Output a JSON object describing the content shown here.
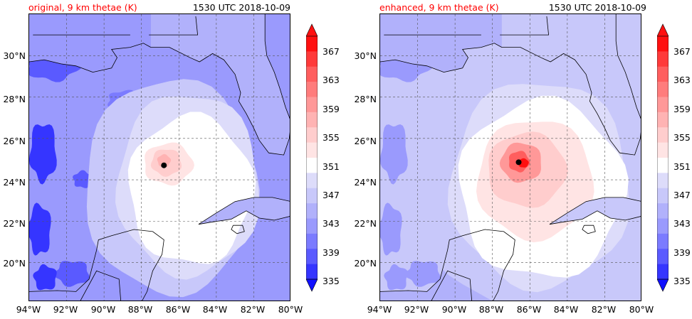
{
  "colors": {
    "levels": [
      "#1010ff",
      "#3535ff",
      "#5a5aff",
      "#7b7bff",
      "#9a9afd",
      "#b1b1fb",
      "#c8c8fa",
      "#dddcfa",
      "#ffffff",
      "#ffe4e4",
      "#ffcdcd",
      "#ffb3b3",
      "#ff9898",
      "#ff7c7c",
      "#ff5e5e",
      "#ff3a3a",
      "#ff1010"
    ],
    "grid": "#555555",
    "coast": "#000000"
  },
  "panels": [
    {
      "title": "original, 9 km thetae (K)",
      "time": "1530 UTC 2018-10-09",
      "storm_center": {
        "lon": -86.8,
        "lat": 24.7
      }
    },
    {
      "title": "enhanced, 9 km thetae (K)",
      "time": "1530 UTC 2018-10-09",
      "storm_center": {
        "lon": -86.6,
        "lat": 24.85
      }
    }
  ],
  "axes": {
    "lat_labels": [
      "30°N",
      "28°N",
      "26°N",
      "24°N",
      "22°N",
      "20°N"
    ],
    "lon_labels": [
      "94°W",
      "92°W",
      "90°W",
      "88°W",
      "86°W",
      "84°W",
      "82°W",
      "80°W"
    ],
    "lon_range": [
      -94,
      -80
    ],
    "lat_range": [
      18.1,
      32.0
    ]
  },
  "colorbar": {
    "labels": [
      "367",
      "363",
      "359",
      "355",
      "351",
      "347",
      "343",
      "339",
      "335"
    ]
  }
}
